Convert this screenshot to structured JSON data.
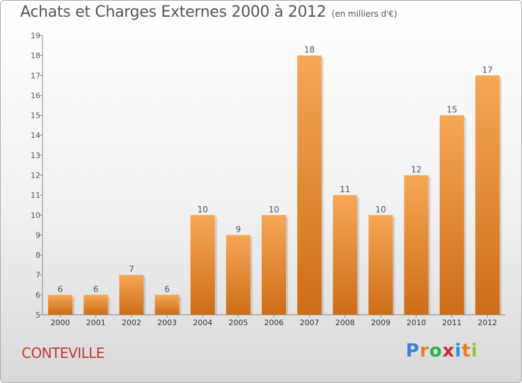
{
  "title": "Achats et Charges Externes 2000 à 2012",
  "unit_note": "(en milliers d'€)",
  "commune": "CONTEVILLE",
  "brand": {
    "text": "Proxiti",
    "letters": [
      "P",
      "r",
      "o",
      "x",
      "i",
      "t",
      "i"
    ],
    "colors": [
      "#3a7fd5",
      "#e67e22",
      "#2bb14a",
      "#d9262c",
      "#2b8fd8",
      "#e67e22",
      "#8dc63f"
    ]
  },
  "colors": {
    "bar_light": "#f6a856",
    "bar_dark": "#cd6d17",
    "text": "#555555",
    "axis": "#888888",
    "commune": "#c0392b"
  },
  "chart_data": {
    "type": "bar",
    "title": "Achats et Charges Externes 2000 à 2012",
    "subtitle": "(en milliers d'€)",
    "categories": [
      "2000",
      "2001",
      "2002",
      "2003",
      "2004",
      "2005",
      "2006",
      "2007",
      "2008",
      "2009",
      "2010",
      "2011",
      "2012"
    ],
    "values": [
      6,
      6,
      7,
      6,
      10,
      9,
      10,
      18,
      11,
      10,
      12,
      15,
      17
    ],
    "ylim": [
      5,
      19
    ],
    "yticks": [
      5,
      6,
      7,
      8,
      9,
      10,
      11,
      12,
      13,
      14,
      15,
      16,
      17,
      18,
      19
    ],
    "grid": false,
    "data_labels": true
  }
}
